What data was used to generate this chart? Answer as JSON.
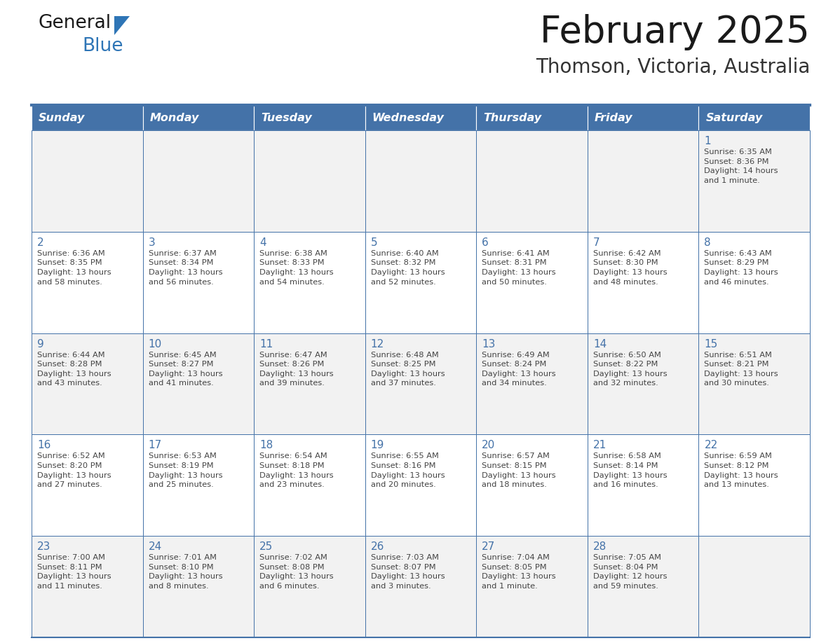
{
  "title": "February 2025",
  "subtitle": "Thomson, Victoria, Australia",
  "days_of_week": [
    "Sunday",
    "Monday",
    "Tuesday",
    "Wednesday",
    "Thursday",
    "Friday",
    "Saturday"
  ],
  "header_bg": "#4472A8",
  "header_text": "#FFFFFF",
  "cell_bg_odd": "#F2F2F2",
  "cell_bg_even": "#FFFFFF",
  "border_color": "#4472A8",
  "day_number_color": "#4472A8",
  "cell_text_color": "#444444",
  "title_color": "#1a1a1a",
  "subtitle_color": "#333333",
  "logo_black": "#1a1a1a",
  "logo_blue": "#2E75B6",
  "calendar_data": [
    [
      null,
      null,
      null,
      null,
      null,
      null,
      {
        "day": 1,
        "sunrise": "6:35 AM",
        "sunset": "8:36 PM",
        "daylight": "14 hours and 1 minute."
      }
    ],
    [
      {
        "day": 2,
        "sunrise": "6:36 AM",
        "sunset": "8:35 PM",
        "daylight": "13 hours and 58 minutes."
      },
      {
        "day": 3,
        "sunrise": "6:37 AM",
        "sunset": "8:34 PM",
        "daylight": "13 hours and 56 minutes."
      },
      {
        "day": 4,
        "sunrise": "6:38 AM",
        "sunset": "8:33 PM",
        "daylight": "13 hours and 54 minutes."
      },
      {
        "day": 5,
        "sunrise": "6:40 AM",
        "sunset": "8:32 PM",
        "daylight": "13 hours and 52 minutes."
      },
      {
        "day": 6,
        "sunrise": "6:41 AM",
        "sunset": "8:31 PM",
        "daylight": "13 hours and 50 minutes."
      },
      {
        "day": 7,
        "sunrise": "6:42 AM",
        "sunset": "8:30 PM",
        "daylight": "13 hours and 48 minutes."
      },
      {
        "day": 8,
        "sunrise": "6:43 AM",
        "sunset": "8:29 PM",
        "daylight": "13 hours and 46 minutes."
      }
    ],
    [
      {
        "day": 9,
        "sunrise": "6:44 AM",
        "sunset": "8:28 PM",
        "daylight": "13 hours and 43 minutes."
      },
      {
        "day": 10,
        "sunrise": "6:45 AM",
        "sunset": "8:27 PM",
        "daylight": "13 hours and 41 minutes."
      },
      {
        "day": 11,
        "sunrise": "6:47 AM",
        "sunset": "8:26 PM",
        "daylight": "13 hours and 39 minutes."
      },
      {
        "day": 12,
        "sunrise": "6:48 AM",
        "sunset": "8:25 PM",
        "daylight": "13 hours and 37 minutes."
      },
      {
        "day": 13,
        "sunrise": "6:49 AM",
        "sunset": "8:24 PM",
        "daylight": "13 hours and 34 minutes."
      },
      {
        "day": 14,
        "sunrise": "6:50 AM",
        "sunset": "8:22 PM",
        "daylight": "13 hours and 32 minutes."
      },
      {
        "day": 15,
        "sunrise": "6:51 AM",
        "sunset": "8:21 PM",
        "daylight": "13 hours and 30 minutes."
      }
    ],
    [
      {
        "day": 16,
        "sunrise": "6:52 AM",
        "sunset": "8:20 PM",
        "daylight": "13 hours and 27 minutes."
      },
      {
        "day": 17,
        "sunrise": "6:53 AM",
        "sunset": "8:19 PM",
        "daylight": "13 hours and 25 minutes."
      },
      {
        "day": 18,
        "sunrise": "6:54 AM",
        "sunset": "8:18 PM",
        "daylight": "13 hours and 23 minutes."
      },
      {
        "day": 19,
        "sunrise": "6:55 AM",
        "sunset": "8:16 PM",
        "daylight": "13 hours and 20 minutes."
      },
      {
        "day": 20,
        "sunrise": "6:57 AM",
        "sunset": "8:15 PM",
        "daylight": "13 hours and 18 minutes."
      },
      {
        "day": 21,
        "sunrise": "6:58 AM",
        "sunset": "8:14 PM",
        "daylight": "13 hours and 16 minutes."
      },
      {
        "day": 22,
        "sunrise": "6:59 AM",
        "sunset": "8:12 PM",
        "daylight": "13 hours and 13 minutes."
      }
    ],
    [
      {
        "day": 23,
        "sunrise": "7:00 AM",
        "sunset": "8:11 PM",
        "daylight": "13 hours and 11 minutes."
      },
      {
        "day": 24,
        "sunrise": "7:01 AM",
        "sunset": "8:10 PM",
        "daylight": "13 hours and 8 minutes."
      },
      {
        "day": 25,
        "sunrise": "7:02 AM",
        "sunset": "8:08 PM",
        "daylight": "13 hours and 6 minutes."
      },
      {
        "day": 26,
        "sunrise": "7:03 AM",
        "sunset": "8:07 PM",
        "daylight": "13 hours and 3 minutes."
      },
      {
        "day": 27,
        "sunrise": "7:04 AM",
        "sunset": "8:05 PM",
        "daylight": "13 hours and 1 minute."
      },
      {
        "day": 28,
        "sunrise": "7:05 AM",
        "sunset": "8:04 PM",
        "daylight": "12 hours and 59 minutes."
      },
      null
    ]
  ]
}
